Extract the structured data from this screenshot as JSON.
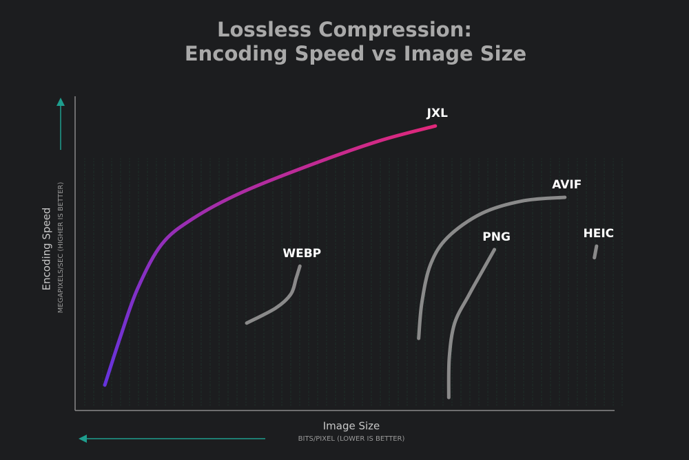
{
  "chart_data": {
    "type": "line",
    "title": [
      "Lossless Compression:",
      "Encoding Speed vs Image Size"
    ],
    "y_label": "Encoding Speed",
    "y_sublabel": "MEGAPIXELS/SEC (HIGHER IS BETTER)",
    "x_label": "Image Size",
    "x_sublabel": "BITS/PIXEL (LOWER IS BETTER)",
    "xlim": [
      0,
      100
    ],
    "ylim": [
      0,
      100
    ],
    "series": [
      {
        "name": "JXL",
        "color": "#e0287a",
        "gradient_start": "#6633dd",
        "x": [
          5.4,
          8.3,
          11.5,
          16.0,
          21.8,
          30.8,
          43.6,
          56.4,
          66.9
        ],
        "values": [
          7.7,
          23.1,
          38.5,
          52.7,
          60.9,
          69.2,
          78.0,
          85.7,
          90.5
        ]
      },
      {
        "name": "WEBP",
        "color": "#8a8a8a",
        "x": [
          31.8,
          37.2,
          40.0,
          41.0,
          41.7
        ],
        "values": [
          27.5,
          32.3,
          36.7,
          41.8,
          45.7
        ]
      },
      {
        "name": "AVIF",
        "color": "#8a8a8a",
        "x": [
          63.8,
          64.4,
          66.0,
          69.2,
          75.6,
          83.3,
          91.0
        ],
        "values": [
          22.6,
          34.1,
          46.2,
          54.9,
          62.6,
          66.6,
          67.7
        ]
      },
      {
        "name": "PNG",
        "color": "#8a8a8a",
        "x": [
          69.4,
          69.5,
          70.5,
          73.1,
          75.6,
          77.9
        ],
        "values": [
          3.7,
          16.5,
          27.5,
          36.3,
          44.0,
          51.0
        ]
      },
      {
        "name": "HEIC",
        "color": "#8a8a8a",
        "x": [
          96.5,
          96.9
        ],
        "values": [
          48.4,
          52.1
        ]
      }
    ]
  }
}
